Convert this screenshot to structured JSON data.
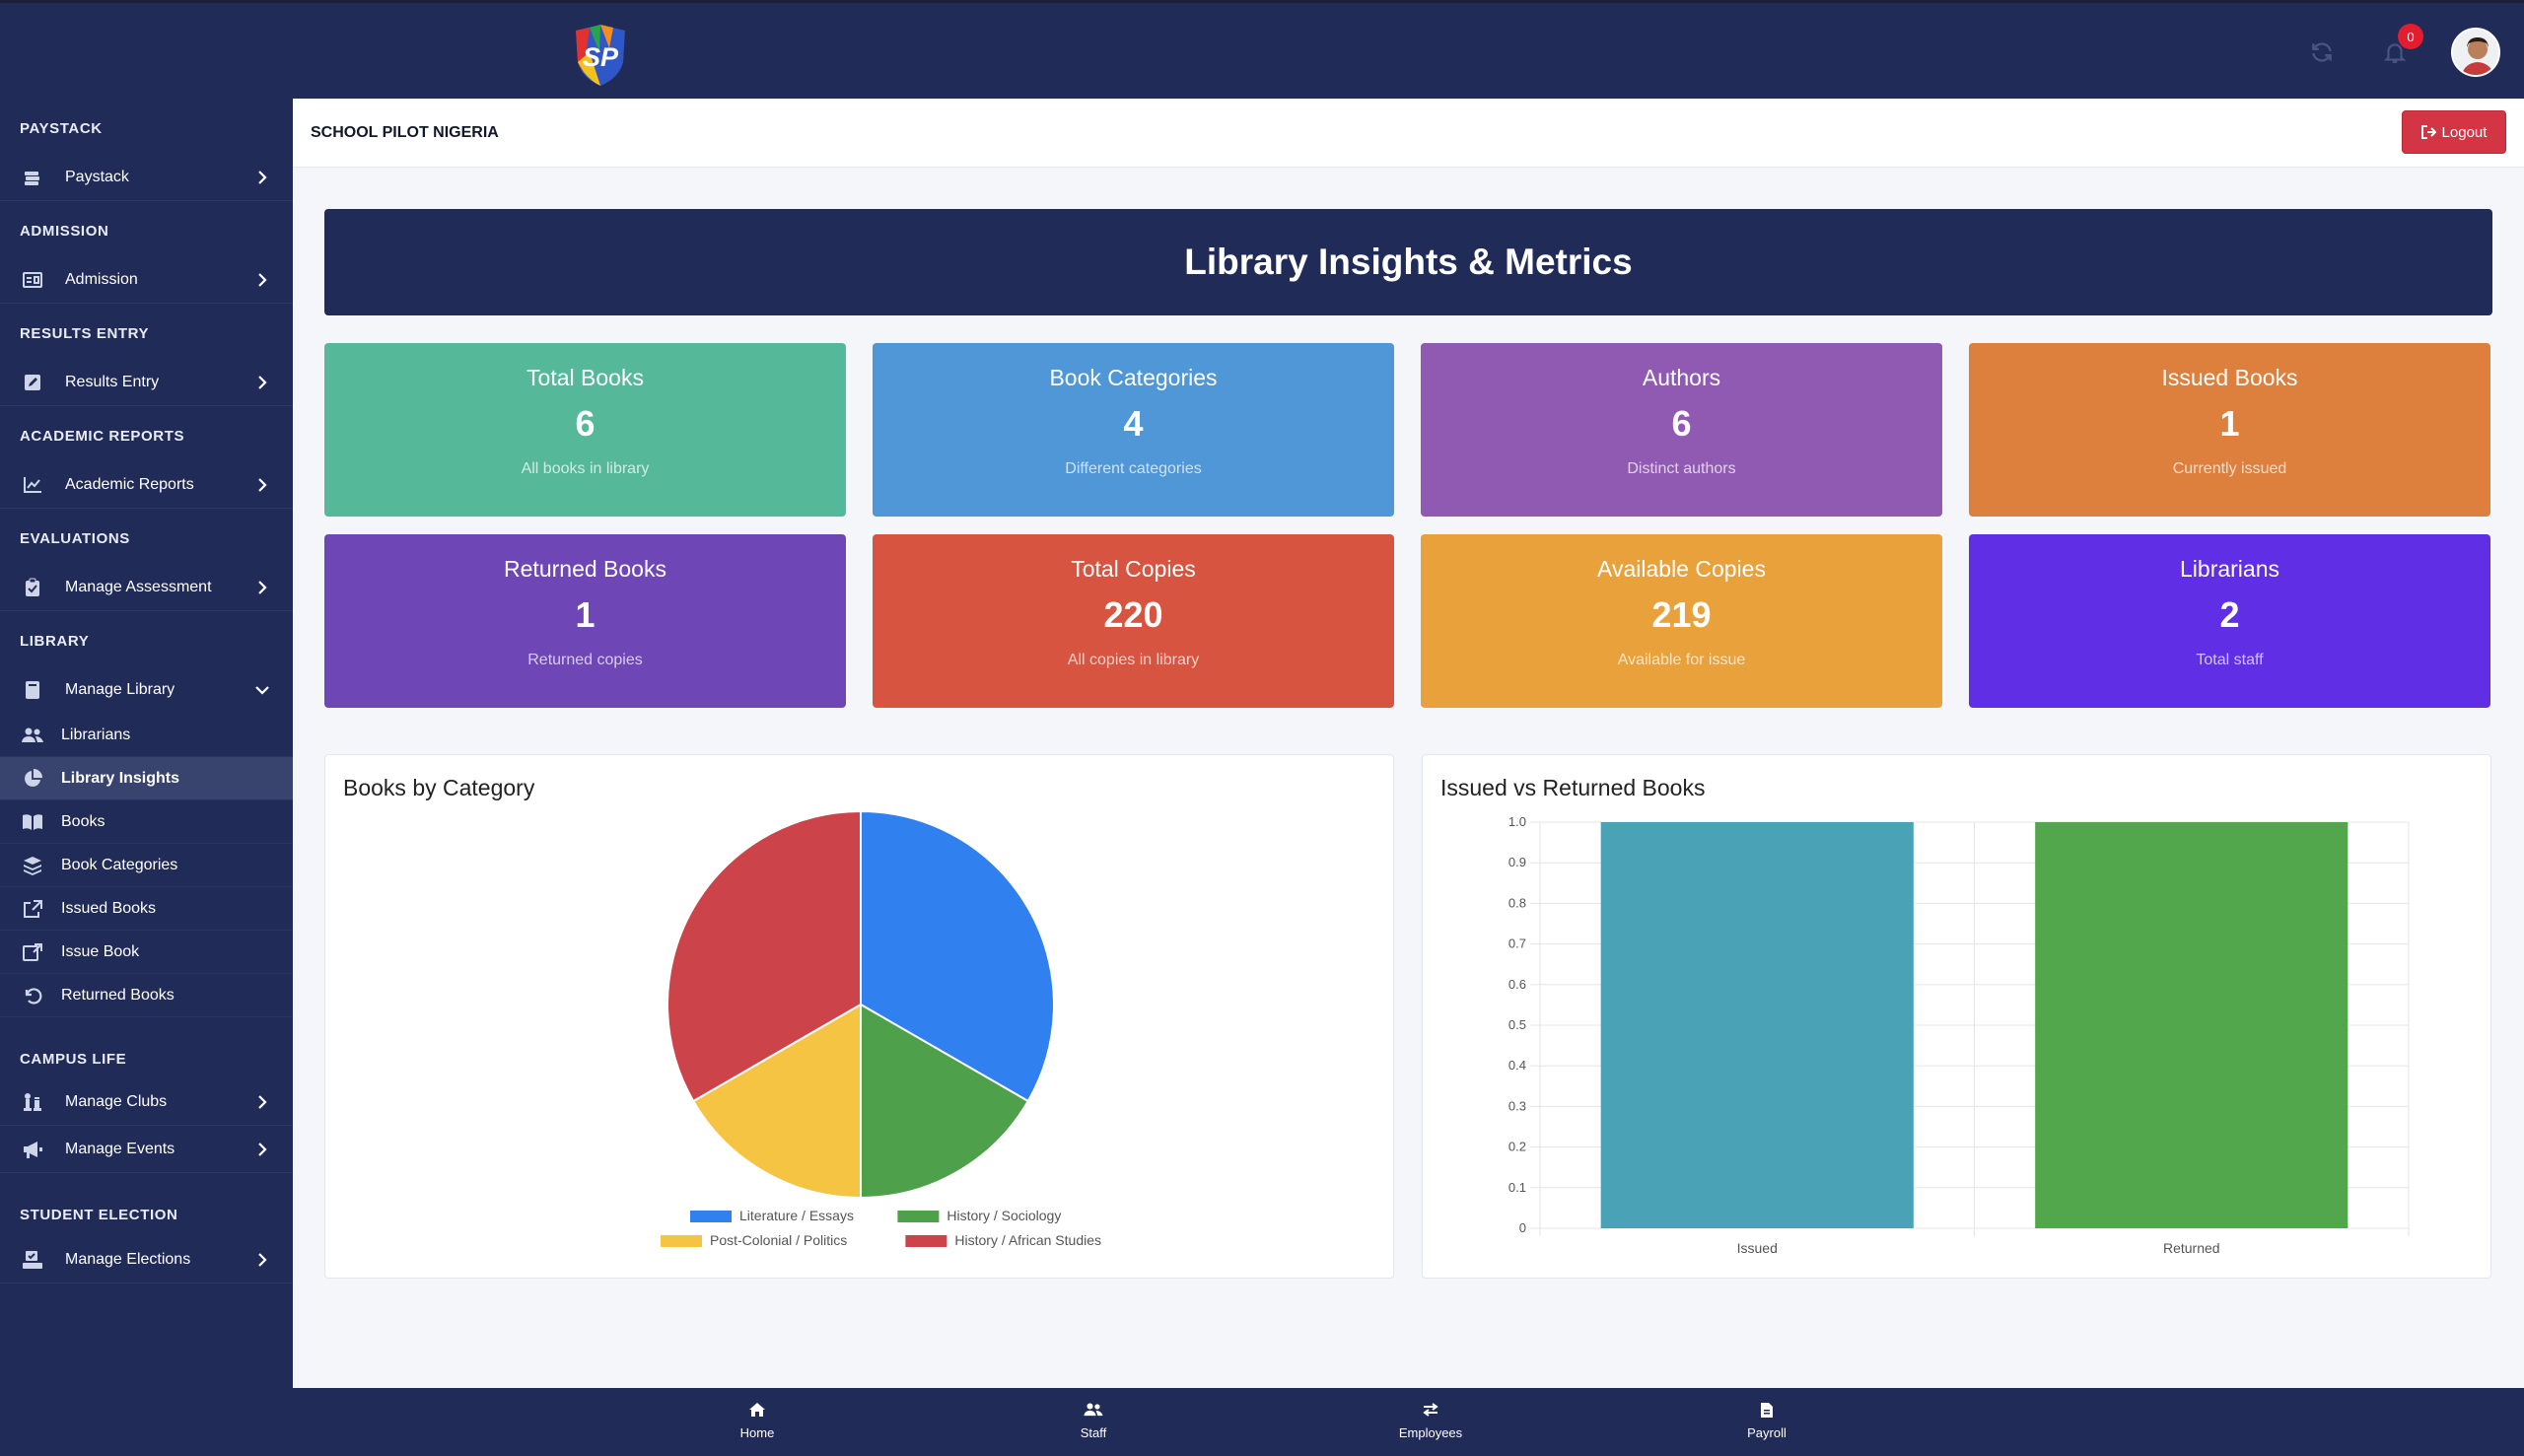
{
  "brand": {
    "logo_text": "SP"
  },
  "topbar": {
    "notification_count": "0"
  },
  "header": {
    "school_name": "SCHOOL PILOT NIGERIA",
    "logout_label": "Logout"
  },
  "banner": {
    "title": "Library Insights & Metrics"
  },
  "sidebar": {
    "sections": [
      {
        "title": "PAYSTACK",
        "item": "Paystack",
        "icon": "money-stack-icon"
      },
      {
        "title": "ADMISSION",
        "item": "Admission",
        "icon": "id-card-icon"
      },
      {
        "title": "RESULTS ENTRY",
        "item": "Results Entry",
        "icon": "edit-icon"
      },
      {
        "title": "ACADEMIC REPORTS",
        "item": "Academic Reports",
        "icon": "line-chart-icon"
      },
      {
        "title": "EVALUATIONS",
        "item": "Manage Assessment",
        "icon": "clipboard-check-icon"
      },
      {
        "title": "LIBRARY",
        "item": "Manage Library",
        "icon": "book-icon"
      },
      {
        "title": "CAMPUS LIFE",
        "item": "Manage Clubs",
        "icon": "chess-icon"
      },
      {
        "item": "Manage Events",
        "icon": "megaphone-icon"
      },
      {
        "title": "STUDENT ELECTION",
        "item": "Manage Elections",
        "icon": "ballot-icon"
      }
    ],
    "library_sub": [
      {
        "label": "Librarians",
        "icon": "users-icon"
      },
      {
        "label": "Library Insights",
        "icon": "pie-chart-icon",
        "active": true
      },
      {
        "label": "Books",
        "icon": "open-book-icon"
      },
      {
        "label": "Book Categories",
        "icon": "layers-icon"
      },
      {
        "label": "Issued Books",
        "icon": "share-icon"
      },
      {
        "label": "Issue Book",
        "icon": "external-link-icon"
      },
      {
        "label": "Returned Books",
        "icon": "undo-icon"
      }
    ]
  },
  "cards": [
    {
      "title": "Total Books",
      "value": "6",
      "subtitle": "All books in library",
      "color": "#55b999"
    },
    {
      "title": "Book Categories",
      "value": "4",
      "subtitle": "Different categories",
      "color": "#4f97d6"
    },
    {
      "title": "Authors",
      "value": "6",
      "subtitle": "Distinct authors",
      "color": "#915ab2"
    },
    {
      "title": "Issued Books",
      "value": "1",
      "subtitle": "Currently issued",
      "color": "#dd803d"
    },
    {
      "title": "Returned Books",
      "value": "1",
      "subtitle": "Returned copies",
      "color": "#6e46b5"
    },
    {
      "title": "Total Copies",
      "value": "220",
      "subtitle": "All copies in library",
      "color": "#d65440"
    },
    {
      "title": "Available Copies",
      "value": "219",
      "subtitle": "Available for issue",
      "color": "#e8a13b"
    },
    {
      "title": "Librarians",
      "value": "2",
      "subtitle": "Total staff",
      "color": "#5f2ee5"
    }
  ],
  "chart_data": [
    {
      "type": "pie",
      "title": "Books by Category",
      "categories": [
        "Literature / Essays",
        "History / Sociology",
        "Post-Colonial / Politics",
        "History / African Studies"
      ],
      "values": [
        2,
        1,
        1,
        2
      ],
      "colors": [
        "#3080f0",
        "#4ea04a",
        "#f5c443",
        "#cc4349"
      ],
      "legend": "bottom"
    },
    {
      "type": "bar",
      "title": "Issued vs Returned Books",
      "categories": [
        "Issued",
        "Returned"
      ],
      "values": [
        1,
        1
      ],
      "colors": [
        "#4aa2b6",
        "#52a74c"
      ],
      "ylim": [
        0,
        1
      ],
      "yticks": [
        "0",
        "0.1",
        "0.2",
        "0.3",
        "0.4",
        "0.5",
        "0.6",
        "0.7",
        "0.8",
        "0.9",
        "1.0"
      ],
      "grid": true,
      "xlabel": "",
      "ylabel": ""
    }
  ],
  "bottom_nav": [
    {
      "label": "Home",
      "icon": "home-icon"
    },
    {
      "label": "Staff",
      "icon": "users-icon"
    },
    {
      "label": "Employees",
      "icon": "swap-icon"
    },
    {
      "label": "Payroll",
      "icon": "document-icon"
    }
  ]
}
